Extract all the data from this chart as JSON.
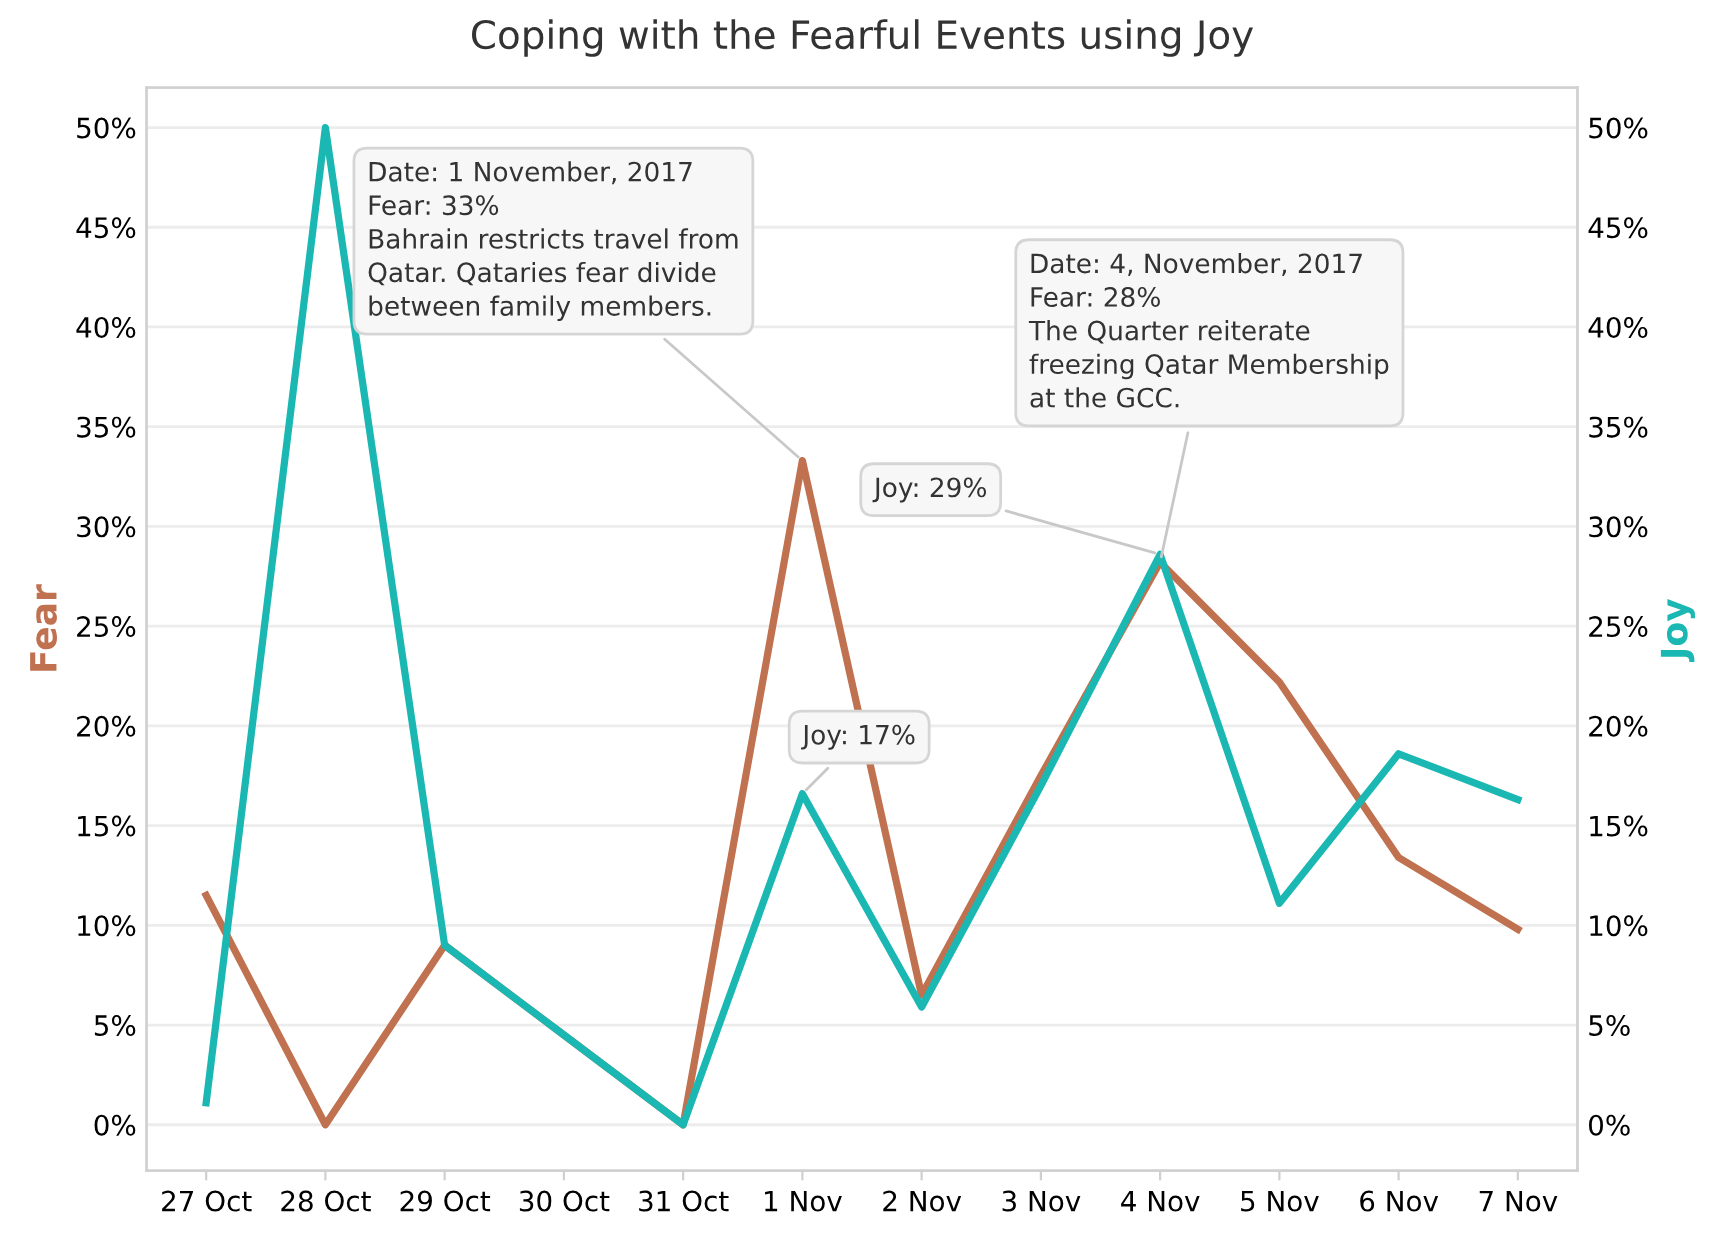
{
  "chart_data": {
    "type": "line",
    "title": "Coping with the Fearful Events using Joy",
    "ylabel": "Fear",
    "y2label": "Joy",
    "categories": [
      "27 Oct",
      "28 Oct",
      "29 Oct",
      "30 Oct",
      "31 Oct",
      "1 Nov",
      "2 Nov",
      "3 Nov",
      "4 Nov",
      "5 Nov",
      "6 Nov",
      "7 Nov"
    ],
    "series": [
      {
        "color": "#c0714f",
        "values": [
          11.5,
          0,
          9,
          4.5,
          0,
          33.3,
          6.5,
          17.5,
          28.2,
          22.2,
          13.4,
          9.8
        ]
      },
      {
        "color": "#1bb8b3",
        "axis": "y2",
        "values": [
          1.1,
          50,
          9,
          4.5,
          0,
          16.6,
          5.9,
          17,
          28.6,
          11.1,
          18.6,
          16.3
        ]
      }
    ],
    "ylim": [
      -2.3,
      52
    ],
    "y2lim": [
      -2.3,
      52
    ],
    "yticks": [
      {
        "value": 0,
        "label": "0%"
      },
      {
        "value": 5,
        "label": "5%"
      },
      {
        "value": 10,
        "label": "10%"
      },
      {
        "value": 15,
        "label": "15%"
      },
      {
        "value": 20,
        "label": "20%"
      },
      {
        "value": 25,
        "label": "25%"
      },
      {
        "value": 30,
        "label": "30%"
      },
      {
        "value": 35,
        "label": "35%"
      },
      {
        "value": 40,
        "label": "40%"
      },
      {
        "value": 45,
        "label": "45%"
      },
      {
        "value": 50,
        "label": "50%"
      }
    ],
    "y2ticks": [
      {
        "value": 0,
        "label": "0%"
      },
      {
        "value": 5,
        "label": "5%"
      },
      {
        "value": 10,
        "label": "10%"
      },
      {
        "value": 15,
        "label": "15%"
      },
      {
        "value": 20,
        "label": "20%"
      },
      {
        "value": 25,
        "label": "25%"
      },
      {
        "value": 30,
        "label": "30%"
      },
      {
        "value": 35,
        "label": "35%"
      },
      {
        "value": 40,
        "label": "40%"
      },
      {
        "value": 45,
        "label": "45%"
      },
      {
        "value": 50,
        "label": "50%"
      }
    ],
    "grid": "y",
    "legend": false,
    "marker": "none",
    "line_style": "solid",
    "annotations": [
      {
        "text": "Date: 1 November, 2017\nFear: 33%\nBahrain restricts travel from\nQatar. Qataries fear divide\nbetween family members.",
        "x": "1 Nov",
        "y": 33.3
      },
      {
        "text": "Date: 4, November, 2017\nFear: 28%\nThe Quarter reiterate\nfreezing Qatar Membership\nat the GCC.",
        "x": "4 Nov",
        "y": 28.2
      },
      {
        "text": "Joy: 29%",
        "x": "4 Nov",
        "y": 28.6
      },
      {
        "text": "Joy: 17%",
        "x": "1 Nov",
        "y": 16.6
      }
    ]
  }
}
